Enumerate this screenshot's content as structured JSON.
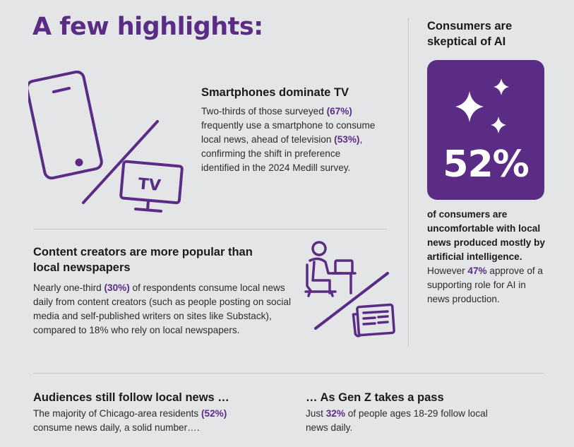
{
  "title": "A few highlights:",
  "smartphones": {
    "heading": "Smartphones dominate TV",
    "t1": "Two-thirds of those surveyed ",
    "h1": "(67%)",
    "t2": " frequently use a smartphone to consume local news, ahead of television ",
    "h2": "(53%)",
    "t3": ", confirming the shift in preference identified in the 2024 Medill survey.",
    "tv_label": "TV"
  },
  "creators": {
    "heading": "Content creators are more popular than local newspapers",
    "t1": "Nearly one-third ",
    "h1": "(30%)",
    "t2": " of respondents consume local news daily from content creators (such as people posting on social media and self-published writers on sites like Substack), compared to 18% who rely on local newspapers."
  },
  "ai": {
    "heading": "Consumers are skeptical of AI",
    "percent": "52%",
    "bold_text": "of consumers are uncomfortable with local news produced mostly by artificial intelligence.",
    "t1": " However ",
    "h1": "47%",
    "t2": " approve of a supporting role for AI in news production."
  },
  "audiences": {
    "heading": "Audiences still follow local news …",
    "t1": "The majority of Chicago-area residents ",
    "h1": "(52%)",
    "t2": " consume news daily, a solid number…."
  },
  "genz": {
    "heading": "… As Gen Z takes a pass",
    "t1": "Just ",
    "h1": "32%",
    "t2": " of people ages 18-29 follow local news daily."
  },
  "colors": {
    "accent": "#5b2c86",
    "background": "#e4e5e7"
  },
  "icons": [
    "smartphone-icon",
    "tv-icon",
    "content-creator-icon",
    "newspaper-icon",
    "sparkles-icon"
  ]
}
